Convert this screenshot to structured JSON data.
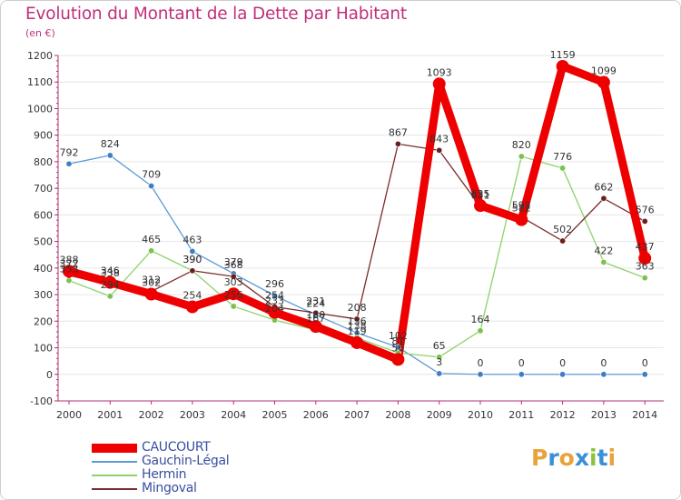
{
  "chart_data": {
    "type": "line",
    "title": "Evolution du Montant de la Dette par Habitant",
    "subtitle": "(en €)",
    "xlabel": "",
    "ylabel": "",
    "x": [
      "2000",
      "2001",
      "2002",
      "2003",
      "2004",
      "2005",
      "2006",
      "2007",
      "2008",
      "2009",
      "2010",
      "2011",
      "2012",
      "2013",
      "2014"
    ],
    "ylim": [
      -100,
      1200
    ],
    "yticks": [
      -100,
      0,
      100,
      200,
      300,
      400,
      500,
      600,
      700,
      800,
      900,
      1000,
      1100,
      1200
    ],
    "grid": true,
    "legend_position": "bottom-left",
    "series": [
      {
        "name": "Gauchin-Légal",
        "color": "#5b9bd5",
        "point_color": "#3f7fc0",
        "values": [
          792,
          824,
          709,
          463,
          379,
          296,
          224,
          156,
          102,
          3,
          0,
          0,
          0,
          0,
          0
        ]
      },
      {
        "name": "Hermin",
        "color": "#8fd16a",
        "point_color": "#7ac24c",
        "values": [
          353,
          294,
          465,
          390,
          256,
          204,
          167,
          138,
          81,
          65,
          164,
          820,
          776,
          422,
          363
        ]
      },
      {
        "name": "Mingoval",
        "color": "#7a2b2b",
        "point_color": "#6b1f1f",
        "values": [
          372,
          338,
          312,
          390,
          368,
          254,
          231,
          208,
          867,
          843,
          631,
          592,
          502,
          662,
          576
        ]
      },
      {
        "name": "CAUCOURT",
        "color": "#ee0000",
        "point_color": "#ee0000",
        "values": [
          388,
          346,
          302,
          254,
          303,
          233,
          180,
          119,
          56,
          1093,
          635,
          582,
          1159,
          1099,
          437
        ]
      }
    ]
  },
  "logo": {
    "text": "Proxiti",
    "letters": [
      "P",
      "r",
      "o",
      "x",
      "i",
      "t",
      "i"
    ],
    "colors": [
      "#e8a33a",
      "#3a8fd9",
      "#e8a33a",
      "#3a8fd9",
      "#8fc13f",
      "#3a8fd9",
      "#e8a33a"
    ]
  }
}
